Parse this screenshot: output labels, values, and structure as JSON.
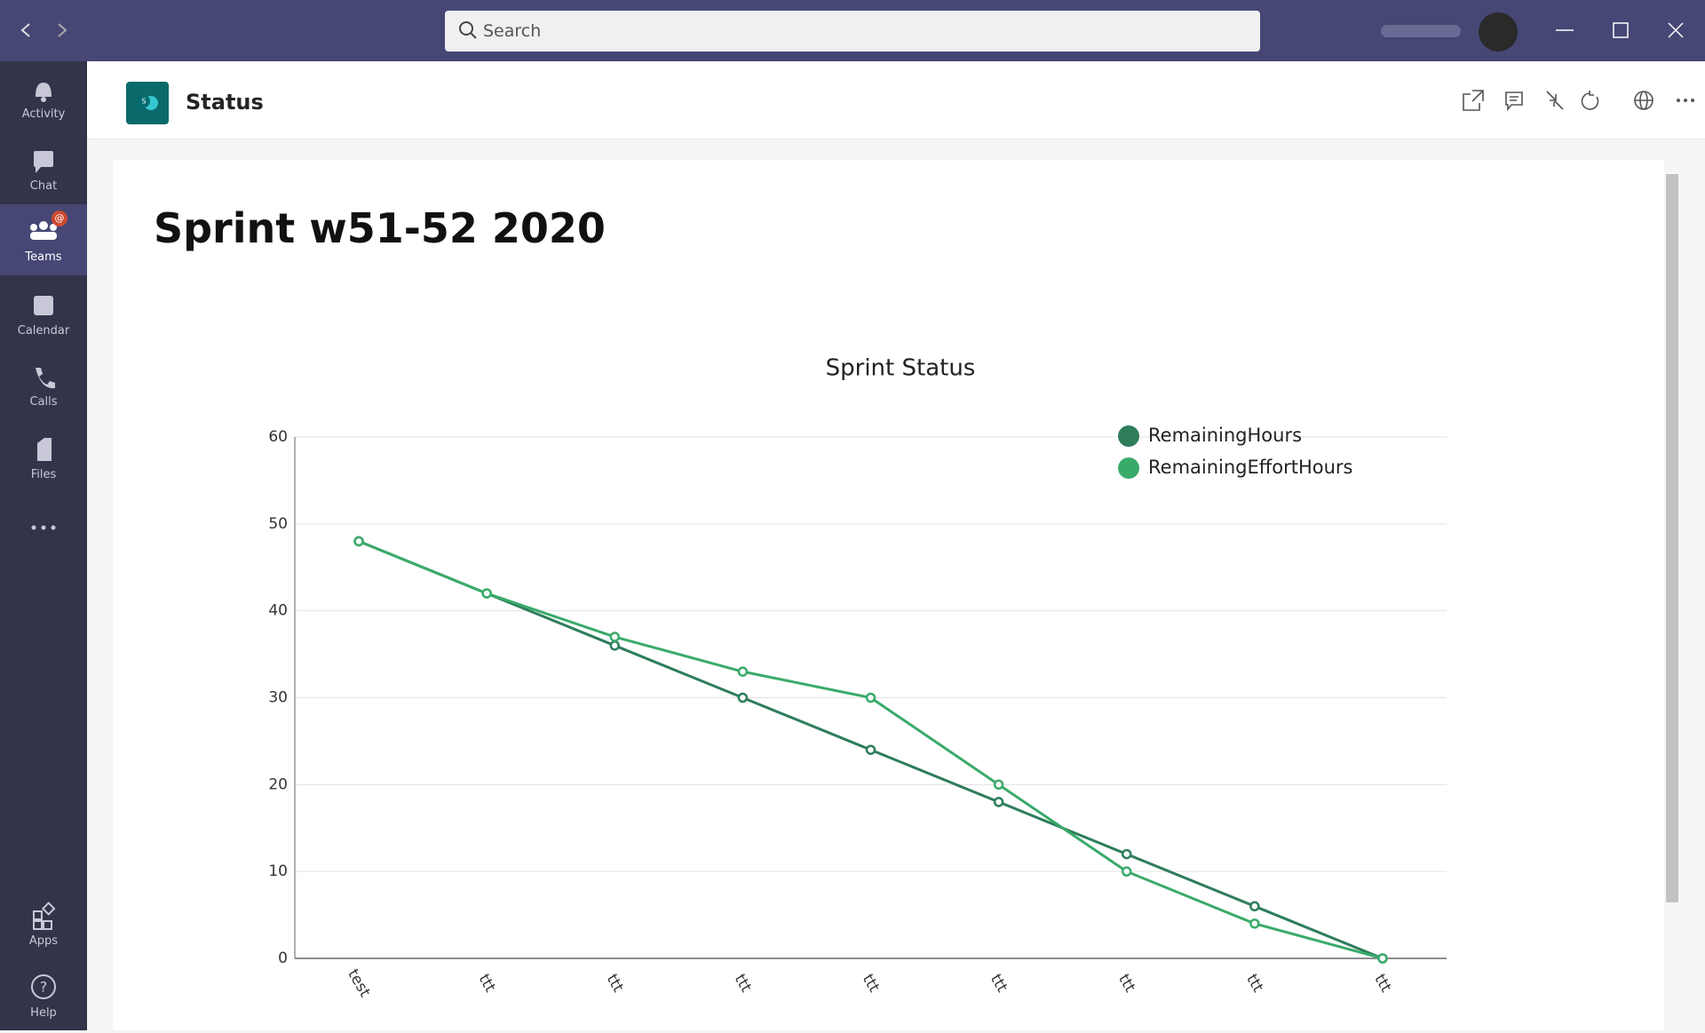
{
  "search": {
    "placeholder": "Search"
  },
  "nav": [
    {
      "label": "Activity"
    },
    {
      "label": "Chat"
    },
    {
      "label": "Teams"
    },
    {
      "label": "Calendar"
    },
    {
      "label": "Calls"
    },
    {
      "label": "Files"
    },
    {
      "label": "Apps"
    },
    {
      "label": "Help"
    }
  ],
  "header": {
    "title": "Status"
  },
  "page": {
    "title": "Sprint w51-52 2020"
  },
  "chart_data": {
    "type": "line",
    "title": "Sprint Status",
    "categories": [
      "test",
      "ttt",
      "ttt",
      "ttt",
      "ttt",
      "ttt",
      "ttt",
      "ttt",
      "ttt"
    ],
    "series": [
      {
        "name": "RemainingHours",
        "color": "#2e7d5b",
        "values": [
          48,
          42,
          36,
          30,
          24,
          18,
          12,
          6,
          0
        ]
      },
      {
        "name": "RemainingEffortHours",
        "color": "#3aaa6a",
        "values": [
          48,
          42,
          37,
          33,
          30,
          20,
          10,
          4,
          0
        ]
      }
    ],
    "ylim": [
      0,
      60
    ],
    "yticks": [
      0,
      10,
      20,
      30,
      40,
      50,
      60
    ],
    "grid": true,
    "legend": "top-right"
  }
}
